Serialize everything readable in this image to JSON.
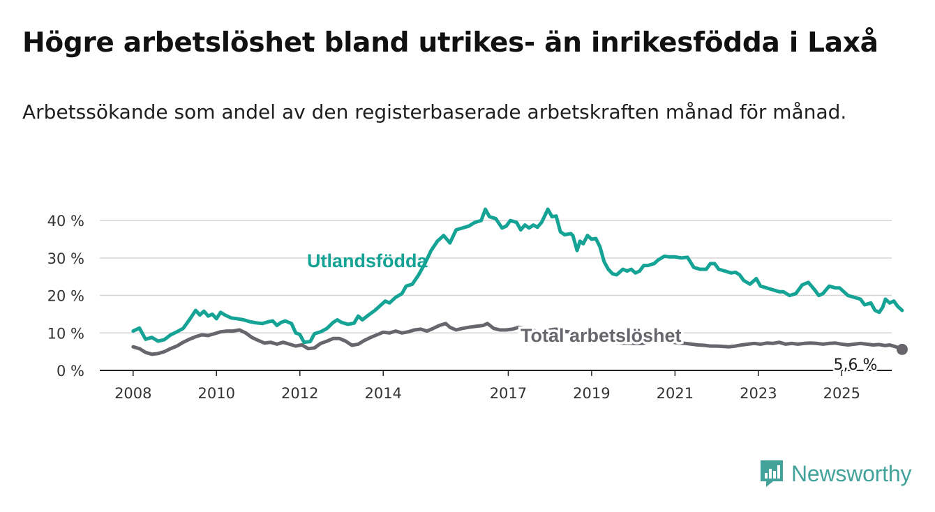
{
  "title": "Högre arbetslöshet bland utrikes- än inrikesfödda i Laxå",
  "subtitle": "Arbetssökande som andel av den registerbaserade arbetskraften månad för månad.",
  "brand": "Newsworthy",
  "colors": {
    "utlandsfodda": "#14a394",
    "total": "#68666c",
    "grid": "#d5d5d5",
    "axis": "#222222",
    "brand": "#43a39b"
  },
  "chart_data": {
    "type": "line",
    "x_tick_labels": [
      "2008",
      "2010",
      "2012",
      "2014",
      "2017",
      "2019",
      "2021",
      "2023",
      "2025"
    ],
    "x_ticks": [
      2008,
      2010,
      2012,
      2014,
      2017,
      2019,
      2021,
      2023,
      2025
    ],
    "y_tick_labels": [
      "0 %",
      "10 %",
      "20 %",
      "30 %",
      "40 %"
    ],
    "y_ticks": [
      0,
      10,
      20,
      30,
      40
    ],
    "xlim": [
      2007.2,
      2026.2
    ],
    "ylim": [
      0,
      43
    ],
    "grid": true,
    "end_label": "5,6 %",
    "series": [
      {
        "name": "Utlandsfödda",
        "points": [
          [
            2008.0,
            10.5
          ],
          [
            2008.15,
            11.3
          ],
          [
            2008.3,
            8.3
          ],
          [
            2008.45,
            8.8
          ],
          [
            2008.6,
            7.8
          ],
          [
            2008.75,
            8.2
          ],
          [
            2008.9,
            9.5
          ],
          [
            2009.05,
            10.3
          ],
          [
            2009.2,
            11.2
          ],
          [
            2009.35,
            13.5
          ],
          [
            2009.5,
            16.0
          ],
          [
            2009.6,
            14.8
          ],
          [
            2009.7,
            15.8
          ],
          [
            2009.8,
            14.5
          ],
          [
            2009.9,
            15.0
          ],
          [
            2010.0,
            13.8
          ],
          [
            2010.1,
            15.5
          ],
          [
            2010.2,
            14.8
          ],
          [
            2010.35,
            14.0
          ],
          [
            2010.5,
            13.8
          ],
          [
            2010.65,
            13.5
          ],
          [
            2010.8,
            13.0
          ],
          [
            2010.95,
            12.7
          ],
          [
            2011.1,
            12.5
          ],
          [
            2011.25,
            13.0
          ],
          [
            2011.35,
            13.2
          ],
          [
            2011.45,
            12.0
          ],
          [
            2011.55,
            12.8
          ],
          [
            2011.65,
            13.2
          ],
          [
            2011.8,
            12.5
          ],
          [
            2011.9,
            10.0
          ],
          [
            2012.0,
            9.6
          ],
          [
            2012.1,
            7.5
          ],
          [
            2012.25,
            7.7
          ],
          [
            2012.35,
            9.8
          ],
          [
            2012.5,
            10.3
          ],
          [
            2012.65,
            11.2
          ],
          [
            2012.8,
            12.8
          ],
          [
            2012.9,
            13.5
          ],
          [
            2013.0,
            12.8
          ],
          [
            2013.15,
            12.3
          ],
          [
            2013.3,
            12.6
          ],
          [
            2013.4,
            14.5
          ],
          [
            2013.5,
            13.5
          ],
          [
            2013.65,
            14.8
          ],
          [
            2013.8,
            16.0
          ],
          [
            2013.95,
            17.5
          ],
          [
            2014.05,
            18.5
          ],
          [
            2014.15,
            18.0
          ],
          [
            2014.3,
            19.5
          ],
          [
            2014.45,
            20.5
          ],
          [
            2014.55,
            22.5
          ],
          [
            2014.7,
            23.0
          ],
          [
            2014.85,
            25.5
          ],
          [
            2015.0,
            28.5
          ],
          [
            2015.15,
            32.0
          ],
          [
            2015.3,
            34.5
          ],
          [
            2015.45,
            36.0
          ],
          [
            2015.6,
            34.0
          ],
          [
            2015.75,
            37.5
          ],
          [
            2015.9,
            38.0
          ],
          [
            2016.05,
            38.5
          ],
          [
            2016.2,
            39.5
          ],
          [
            2016.35,
            40.0
          ],
          [
            2016.45,
            43.0
          ],
          [
            2016.55,
            41.0
          ],
          [
            2016.7,
            40.5
          ],
          [
            2016.85,
            38.0
          ],
          [
            2016.95,
            38.5
          ],
          [
            2017.05,
            40.0
          ],
          [
            2017.2,
            39.5
          ],
          [
            2017.3,
            37.5
          ],
          [
            2017.4,
            38.8
          ],
          [
            2017.5,
            38.0
          ],
          [
            2017.6,
            38.8
          ],
          [
            2017.7,
            38.2
          ],
          [
            2017.8,
            39.5
          ],
          [
            2017.95,
            43.0
          ],
          [
            2018.05,
            41.0
          ],
          [
            2018.15,
            41.2
          ],
          [
            2018.25,
            37.0
          ],
          [
            2018.35,
            36.2
          ],
          [
            2018.5,
            36.5
          ],
          [
            2018.55,
            36.0
          ],
          [
            2018.65,
            32.0
          ],
          [
            2018.72,
            34.5
          ],
          [
            2018.8,
            33.8
          ],
          [
            2018.9,
            36.0
          ],
          [
            2019.0,
            35.0
          ],
          [
            2019.1,
            35.2
          ],
          [
            2019.2,
            33.0
          ],
          [
            2019.3,
            29.0
          ],
          [
            2019.4,
            27.0
          ],
          [
            2019.5,
            25.8
          ],
          [
            2019.6,
            25.5
          ],
          [
            2019.75,
            27.0
          ],
          [
            2019.85,
            26.5
          ],
          [
            2019.95,
            27.0
          ],
          [
            2020.05,
            26.0
          ],
          [
            2020.15,
            26.5
          ],
          [
            2020.25,
            28.0
          ],
          [
            2020.35,
            28.0
          ],
          [
            2020.5,
            28.5
          ],
          [
            2020.6,
            29.5
          ],
          [
            2020.75,
            30.5
          ],
          [
            2020.85,
            30.3
          ],
          [
            2021.0,
            30.3
          ],
          [
            2021.15,
            30.0
          ],
          [
            2021.3,
            30.2
          ],
          [
            2021.45,
            27.5
          ],
          [
            2021.6,
            27.0
          ],
          [
            2021.75,
            27.0
          ],
          [
            2021.85,
            28.5
          ],
          [
            2021.95,
            28.5
          ],
          [
            2022.05,
            27.0
          ],
          [
            2022.2,
            26.5
          ],
          [
            2022.35,
            26.0
          ],
          [
            2022.45,
            26.2
          ],
          [
            2022.55,
            25.5
          ],
          [
            2022.65,
            24.0
          ],
          [
            2022.8,
            23.0
          ],
          [
            2022.95,
            24.5
          ],
          [
            2023.05,
            22.5
          ],
          [
            2023.2,
            22.0
          ],
          [
            2023.35,
            21.5
          ],
          [
            2023.5,
            21.0
          ],
          [
            2023.6,
            21.0
          ],
          [
            2023.75,
            20.0
          ],
          [
            2023.9,
            20.5
          ],
          [
            2024.05,
            22.8
          ],
          [
            2024.2,
            23.5
          ],
          [
            2024.35,
            21.5
          ],
          [
            2024.45,
            20.0
          ],
          [
            2024.55,
            20.5
          ],
          [
            2024.7,
            22.5
          ],
          [
            2024.85,
            22.0
          ],
          [
            2024.95,
            22.0
          ],
          [
            2025.05,
            21.0
          ],
          [
            2025.15,
            20.0
          ],
          [
            2025.3,
            19.5
          ],
          [
            2025.45,
            19.0
          ],
          [
            2025.55,
            17.5
          ],
          [
            2025.7,
            18.0
          ],
          [
            2025.8,
            16.0
          ],
          [
            2025.9,
            15.5
          ],
          [
            2025.98,
            16.8
          ],
          [
            2026.05,
            19.0
          ],
          [
            2026.15,
            18.0
          ],
          [
            2026.25,
            18.5
          ],
          [
            2026.35,
            17.0
          ],
          [
            2026.45,
            16.0
          ]
        ]
      },
      {
        "name": "Total arbetslöshet",
        "points": [
          [
            2008.0,
            6.3
          ],
          [
            2008.15,
            5.8
          ],
          [
            2008.3,
            4.8
          ],
          [
            2008.45,
            4.3
          ],
          [
            2008.6,
            4.5
          ],
          [
            2008.75,
            5.0
          ],
          [
            2008.9,
            5.8
          ],
          [
            2009.05,
            6.5
          ],
          [
            2009.2,
            7.5
          ],
          [
            2009.35,
            8.3
          ],
          [
            2009.5,
            9.0
          ],
          [
            2009.65,
            9.5
          ],
          [
            2009.8,
            9.3
          ],
          [
            2009.95,
            9.8
          ],
          [
            2010.1,
            10.3
          ],
          [
            2010.25,
            10.5
          ],
          [
            2010.4,
            10.5
          ],
          [
            2010.55,
            10.8
          ],
          [
            2010.7,
            10.0
          ],
          [
            2010.85,
            8.8
          ],
          [
            2011.0,
            8.0
          ],
          [
            2011.15,
            7.3
          ],
          [
            2011.3,
            7.5
          ],
          [
            2011.45,
            7.0
          ],
          [
            2011.6,
            7.5
          ],
          [
            2011.75,
            7.0
          ],
          [
            2011.9,
            6.5
          ],
          [
            2012.05,
            6.8
          ],
          [
            2012.2,
            5.8
          ],
          [
            2012.35,
            6.0
          ],
          [
            2012.5,
            7.2
          ],
          [
            2012.65,
            7.8
          ],
          [
            2012.8,
            8.5
          ],
          [
            2012.95,
            8.5
          ],
          [
            2013.1,
            7.8
          ],
          [
            2013.25,
            6.7
          ],
          [
            2013.4,
            7.0
          ],
          [
            2013.55,
            8.0
          ],
          [
            2013.7,
            8.8
          ],
          [
            2013.85,
            9.5
          ],
          [
            2014.0,
            10.2
          ],
          [
            2014.15,
            10.0
          ],
          [
            2014.3,
            10.5
          ],
          [
            2014.45,
            10.0
          ],
          [
            2014.6,
            10.3
          ],
          [
            2014.75,
            10.8
          ],
          [
            2014.9,
            11.0
          ],
          [
            2015.05,
            10.5
          ],
          [
            2015.2,
            11.2
          ],
          [
            2015.35,
            12.0
          ],
          [
            2015.5,
            12.5
          ],
          [
            2015.6,
            11.5
          ],
          [
            2015.75,
            10.8
          ],
          [
            2015.9,
            11.2
          ],
          [
            2016.05,
            11.5
          ],
          [
            2016.25,
            11.8
          ],
          [
            2016.4,
            12.0
          ],
          [
            2016.5,
            12.5
          ],
          [
            2016.65,
            11.2
          ],
          [
            2016.8,
            10.8
          ],
          [
            2016.95,
            10.8
          ],
          [
            2017.1,
            11.0
          ],
          [
            2017.25,
            11.5
          ],
          [
            2017.4,
            11.2
          ],
          [
            2017.55,
            11.0
          ],
          [
            2017.7,
            10.2
          ],
          [
            2017.85,
            10.5
          ],
          [
            2018.0,
            10.8
          ],
          [
            2018.15,
            11.0
          ],
          [
            2018.3,
            10.5
          ],
          [
            2018.45,
            10.3
          ],
          [
            2018.55,
            10.0
          ],
          [
            2018.7,
            9.5
          ],
          [
            2018.85,
            9.3
          ],
          [
            2019.0,
            9.0
          ],
          [
            2019.15,
            8.7
          ],
          [
            2019.3,
            8.3
          ],
          [
            2019.45,
            7.8
          ],
          [
            2019.6,
            7.5
          ],
          [
            2019.75,
            7.3
          ],
          [
            2019.9,
            7.3
          ],
          [
            2020.05,
            7.2
          ],
          [
            2020.2,
            7.2
          ],
          [
            2020.35,
            7.5
          ],
          [
            2020.5,
            7.8
          ],
          [
            2020.65,
            8.0
          ],
          [
            2020.8,
            7.8
          ],
          [
            2020.95,
            7.5
          ],
          [
            2021.1,
            7.3
          ],
          [
            2021.25,
            7.2
          ],
          [
            2021.4,
            7.0
          ],
          [
            2021.55,
            6.8
          ],
          [
            2021.7,
            6.7
          ],
          [
            2021.85,
            6.5
          ],
          [
            2022.0,
            6.5
          ],
          [
            2022.15,
            6.4
          ],
          [
            2022.3,
            6.3
          ],
          [
            2022.45,
            6.5
          ],
          [
            2022.6,
            6.8
          ],
          [
            2022.75,
            7.0
          ],
          [
            2022.9,
            7.2
          ],
          [
            2023.05,
            7.0
          ],
          [
            2023.2,
            7.3
          ],
          [
            2023.35,
            7.2
          ],
          [
            2023.5,
            7.5
          ],
          [
            2023.65,
            7.0
          ],
          [
            2023.8,
            7.2
          ],
          [
            2023.95,
            7.0
          ],
          [
            2024.1,
            7.2
          ],
          [
            2024.25,
            7.3
          ],
          [
            2024.4,
            7.2
          ],
          [
            2024.55,
            7.0
          ],
          [
            2024.7,
            7.2
          ],
          [
            2024.85,
            7.3
          ],
          [
            2025.0,
            7.0
          ],
          [
            2025.15,
            6.8
          ],
          [
            2025.3,
            7.0
          ],
          [
            2025.45,
            7.2
          ],
          [
            2025.6,
            7.0
          ],
          [
            2025.75,
            6.8
          ],
          [
            2025.9,
            6.9
          ],
          [
            2026.05,
            6.6
          ],
          [
            2026.15,
            6.8
          ],
          [
            2026.3,
            6.3
          ],
          [
            2026.45,
            5.6
          ]
        ]
      }
    ]
  }
}
